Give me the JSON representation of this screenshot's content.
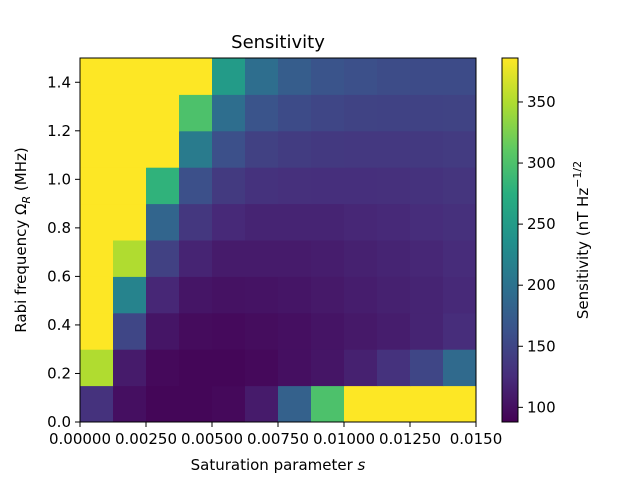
{
  "chart_data": {
    "type": "heatmap",
    "title": "Sensitivity",
    "x_label": [
      "Saturation parameter ",
      "s"
    ],
    "y_label": [
      "Rabi frequency Ω",
      "R",
      " (MHz)"
    ],
    "colorbar_label": [
      "Sensitivity (nT Hz",
      "−1/2"
    ],
    "xlim": [
      0,
      0.015
    ],
    "xticks": [
      {
        "value": 0,
        "label": "0.00000"
      },
      {
        "value": 0.0025,
        "label": "0.00250"
      },
      {
        "value": 0.005,
        "label": "0.00500"
      },
      {
        "value": 0.0075,
        "label": "0.00750"
      },
      {
        "value": 0.01,
        "label": "0.01000"
      },
      {
        "value": 0.0125,
        "label": "0.01250"
      },
      {
        "value": 0.015,
        "label": "0.0150"
      }
    ],
    "ylim": [
      0,
      1.5
    ],
    "yticks": [
      {
        "value": 0,
        "label": "0.0"
      },
      0.2,
      0.4,
      0.6,
      0.8,
      {
        "value": 1,
        "label": "1.0"
      },
      1.2,
      1.4
    ],
    "clim": [
      88,
      386
    ],
    "cticks": [
      100,
      150,
      200,
      250,
      300,
      350
    ],
    "x": [
      0.000625,
      0.001875,
      0.003125,
      0.004375,
      0.005625,
      0.006875,
      0.008125,
      0.009375,
      0.010625,
      0.011875,
      0.013125,
      0.014375
    ],
    "y": [
      0.075,
      0.225,
      0.375,
      0.525,
      0.675,
      0.825,
      0.975,
      1.125,
      1.275,
      1.425
    ],
    "z": [
      [
        130,
        100,
        92,
        92,
        95,
        110,
        180,
        300,
        400,
        400,
        400,
        400
      ],
      [
        350,
        110,
        95,
        92,
        92,
        95,
        100,
        105,
        115,
        130,
        150,
        190
      ],
      [
        400,
        150,
        105,
        97,
        96,
        98,
        100,
        104,
        108,
        112,
        118,
        125
      ],
      [
        400,
        220,
        120,
        105,
        102,
        103,
        105,
        108,
        112,
        115,
        118,
        122
      ],
      [
        400,
        350,
        145,
        118,
        110,
        110,
        110,
        112,
        115,
        118,
        120,
        124
      ],
      [
        400,
        400,
        185,
        135,
        122,
        118,
        118,
        118,
        120,
        122,
        125,
        128
      ],
      [
        400,
        400,
        280,
        160,
        138,
        130,
        128,
        127,
        127,
        128,
        130,
        133
      ],
      [
        400,
        400,
        400,
        210,
        160,
        145,
        140,
        137,
        136,
        136,
        137,
        139
      ],
      [
        400,
        400,
        400,
        300,
        195,
        165,
        155,
        150,
        147,
        146,
        146,
        147
      ],
      [
        400,
        400,
        400,
        400,
        250,
        195,
        175,
        165,
        160,
        156,
        155,
        155
      ]
    ]
  }
}
